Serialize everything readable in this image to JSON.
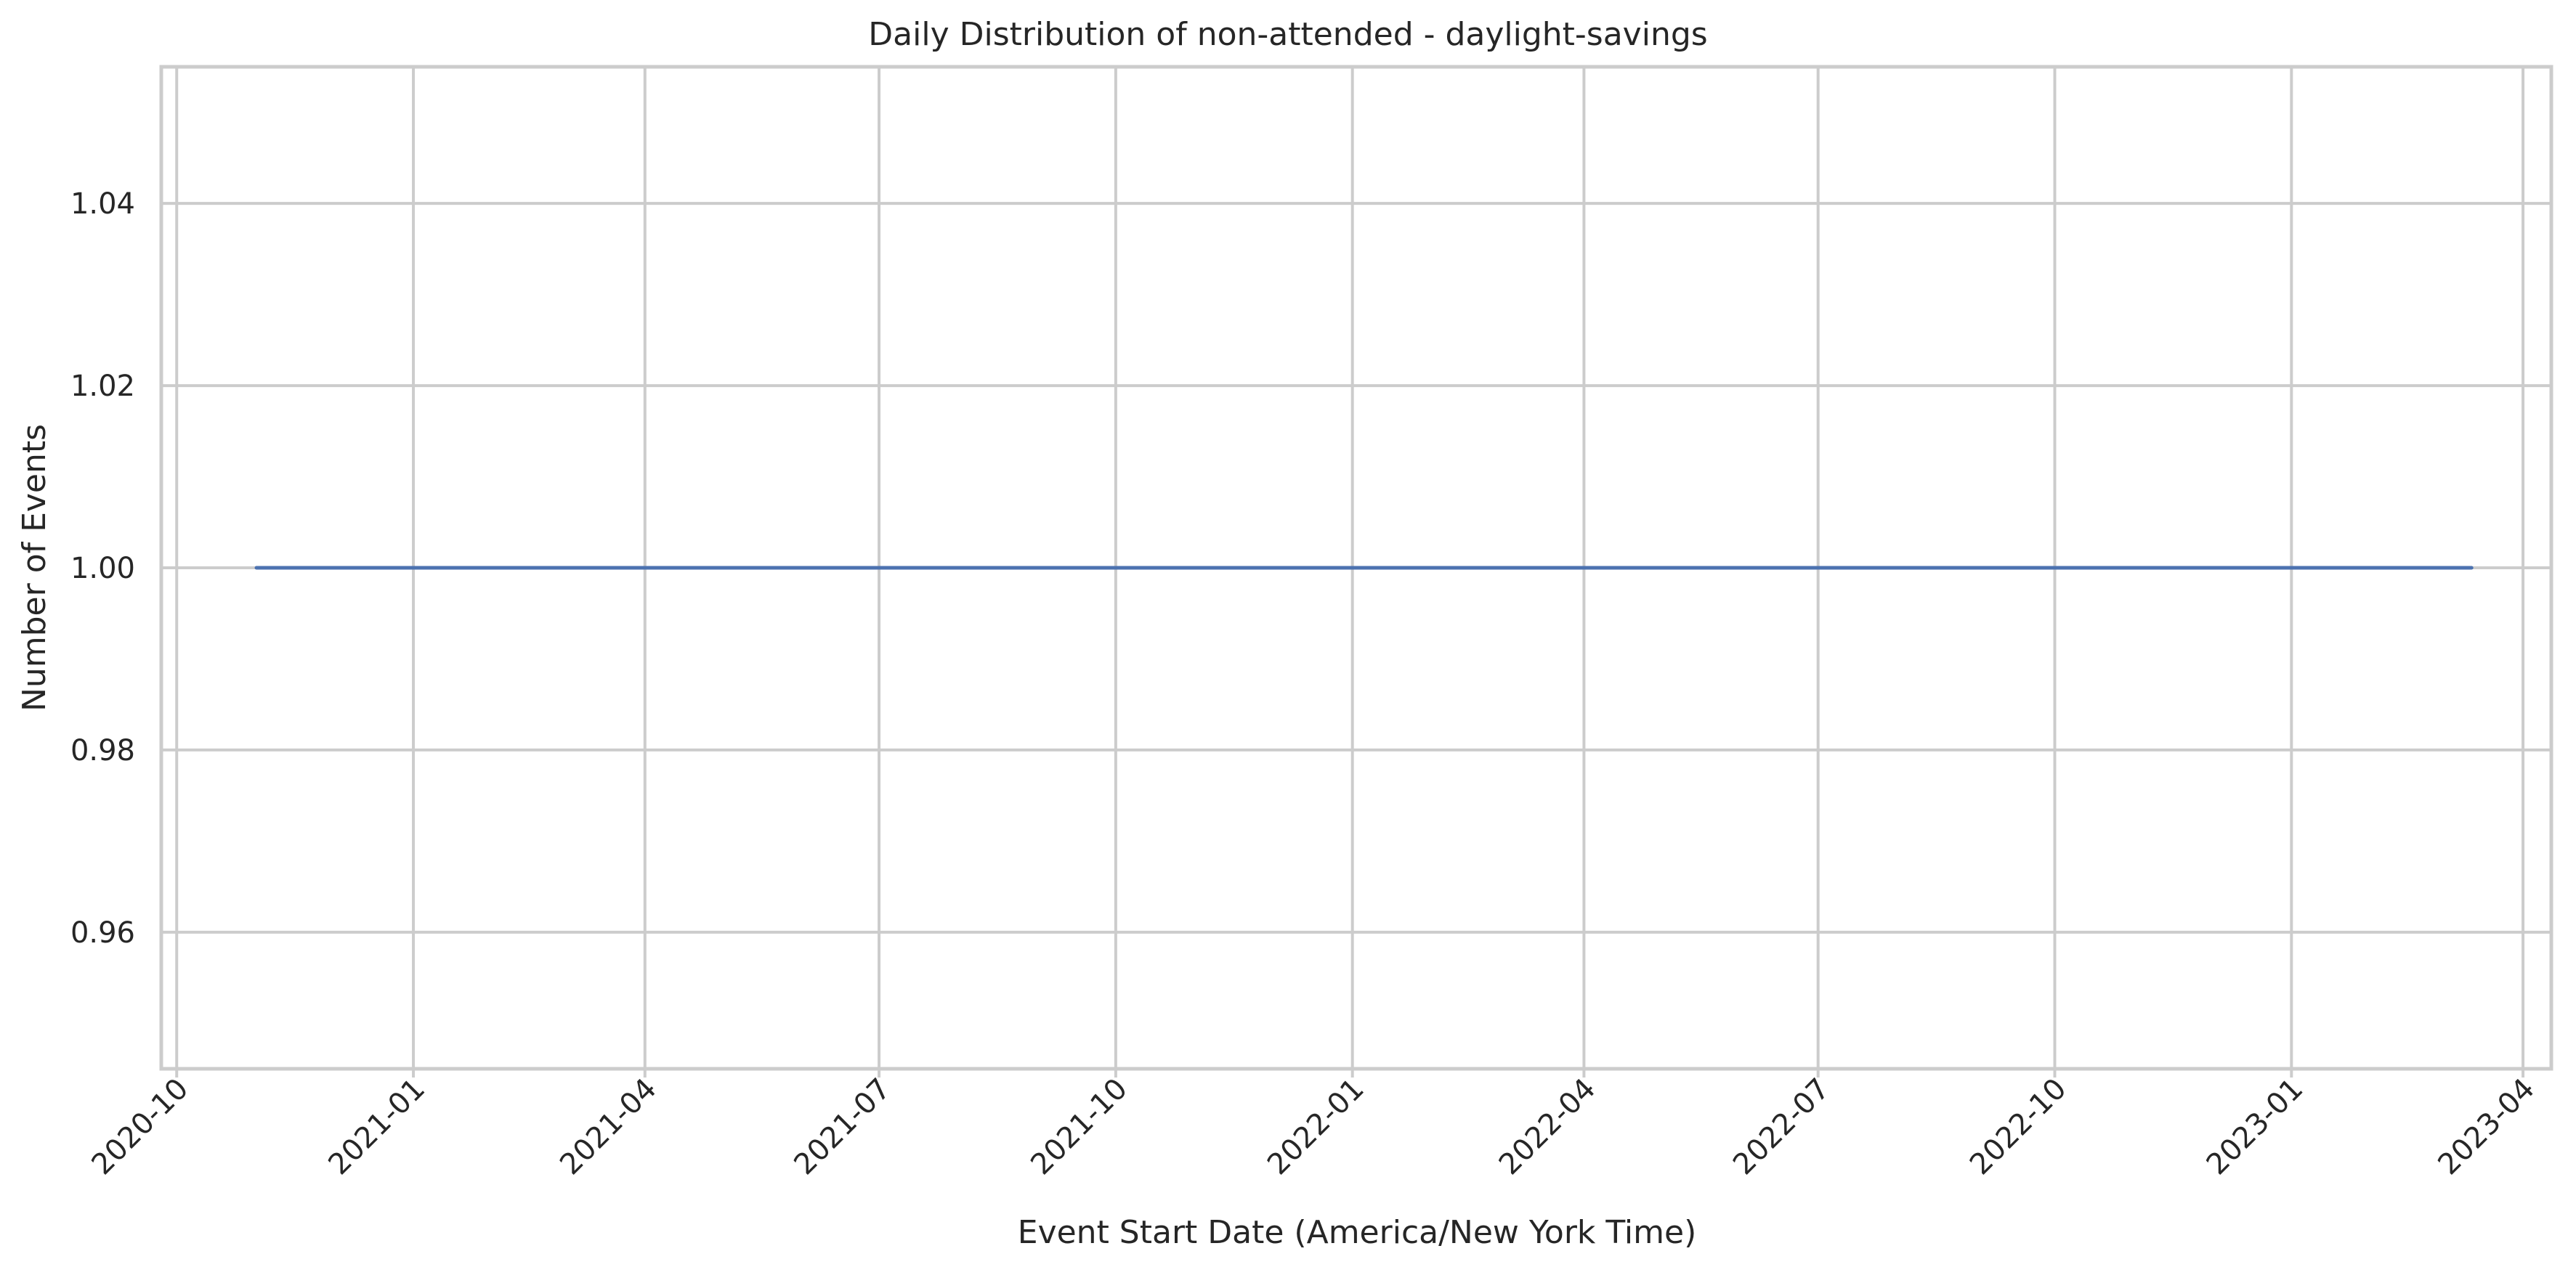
{
  "chart_data": {
    "type": "line",
    "title": "Daily Distribution of non-attended - daylight-savings",
    "xlabel": "Event Start Date (America/New York Time)",
    "ylabel": "Number of Events",
    "x_axis_type": "date",
    "xlim": [
      "2020-09-25",
      "2023-04-12"
    ],
    "ylim": [
      0.945,
      1.055
    ],
    "x_ticks": [
      {
        "date": "2020-10-01",
        "label": "2020-10"
      },
      {
        "date": "2021-01-01",
        "label": "2021-01"
      },
      {
        "date": "2021-04-01",
        "label": "2021-04"
      },
      {
        "date": "2021-07-01",
        "label": "2021-07"
      },
      {
        "date": "2021-10-01",
        "label": "2021-10"
      },
      {
        "date": "2022-01-01",
        "label": "2022-01"
      },
      {
        "date": "2022-04-01",
        "label": "2022-04"
      },
      {
        "date": "2022-07-01",
        "label": "2022-07"
      },
      {
        "date": "2022-10-01",
        "label": "2022-10"
      },
      {
        "date": "2023-01-01",
        "label": "2023-01"
      },
      {
        "date": "2023-04-01",
        "label": "2023-04"
      }
    ],
    "y_ticks": [
      {
        "value": 0.96,
        "label": "0.96"
      },
      {
        "value": 0.98,
        "label": "0.98"
      },
      {
        "value": 1.0,
        "label": "1.00"
      },
      {
        "value": 1.02,
        "label": "1.02"
      },
      {
        "value": 1.04,
        "label": "1.04"
      }
    ],
    "grid": true,
    "legend": "none",
    "series": [
      {
        "color": "#4c72b0",
        "points": [
          {
            "x": "2020-11-01",
            "y": 1
          },
          {
            "x": "2023-03-12",
            "y": 1
          }
        ]
      }
    ]
  }
}
